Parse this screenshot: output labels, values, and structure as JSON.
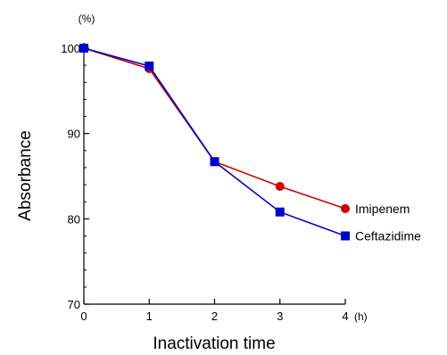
{
  "chart_data": {
    "type": "line",
    "x": [
      0,
      1,
      2,
      3,
      4
    ],
    "series": [
      {
        "name": "Imipenem",
        "values": [
          100,
          97.6,
          86.7,
          83.8,
          81.2
        ],
        "color": "#cc0000",
        "marker": "circle"
      },
      {
        "name": "Ceftazidime",
        "values": [
          100,
          97.9,
          86.7,
          80.8,
          78.0
        ],
        "color": "#0000cc",
        "marker": "square"
      }
    ],
    "xlabel": "Inactivation time",
    "ylabel": "Absorbance",
    "x_unit": "(h)",
    "y_unit": "(%)",
    "xlim": [
      0,
      4
    ],
    "ylim": [
      70,
      100
    ],
    "x_ticks": [
      0,
      1,
      2,
      3,
      4
    ],
    "y_ticks": [
      70,
      80,
      90,
      100
    ],
    "y_minor_step": 2,
    "grid": false,
    "legend": "labels at line ends (right)"
  }
}
